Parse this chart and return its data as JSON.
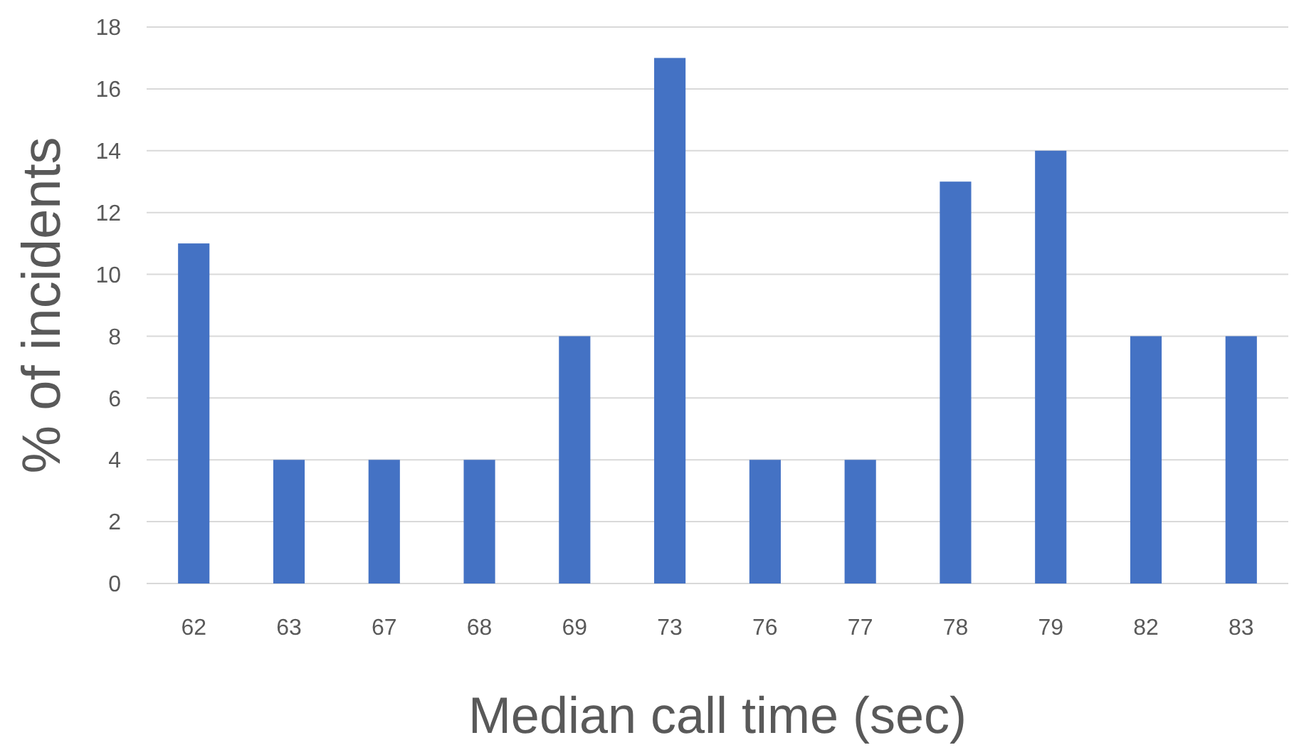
{
  "chart_data": {
    "type": "bar",
    "xlabel": "Median call time (sec)",
    "ylabel": "% of incidents",
    "categories": [
      "62",
      "63",
      "67",
      "68",
      "69",
      "73",
      "76",
      "77",
      "78",
      "79",
      "82",
      "83"
    ],
    "values": [
      11,
      4,
      4,
      4,
      8,
      17,
      4,
      4,
      13,
      14,
      8,
      8
    ],
    "color": "#4472c4",
    "ylim": [
      0,
      18
    ],
    "yticks": [
      0,
      2,
      4,
      6,
      8,
      10,
      12,
      14,
      16,
      18
    ],
    "grid": "y"
  }
}
